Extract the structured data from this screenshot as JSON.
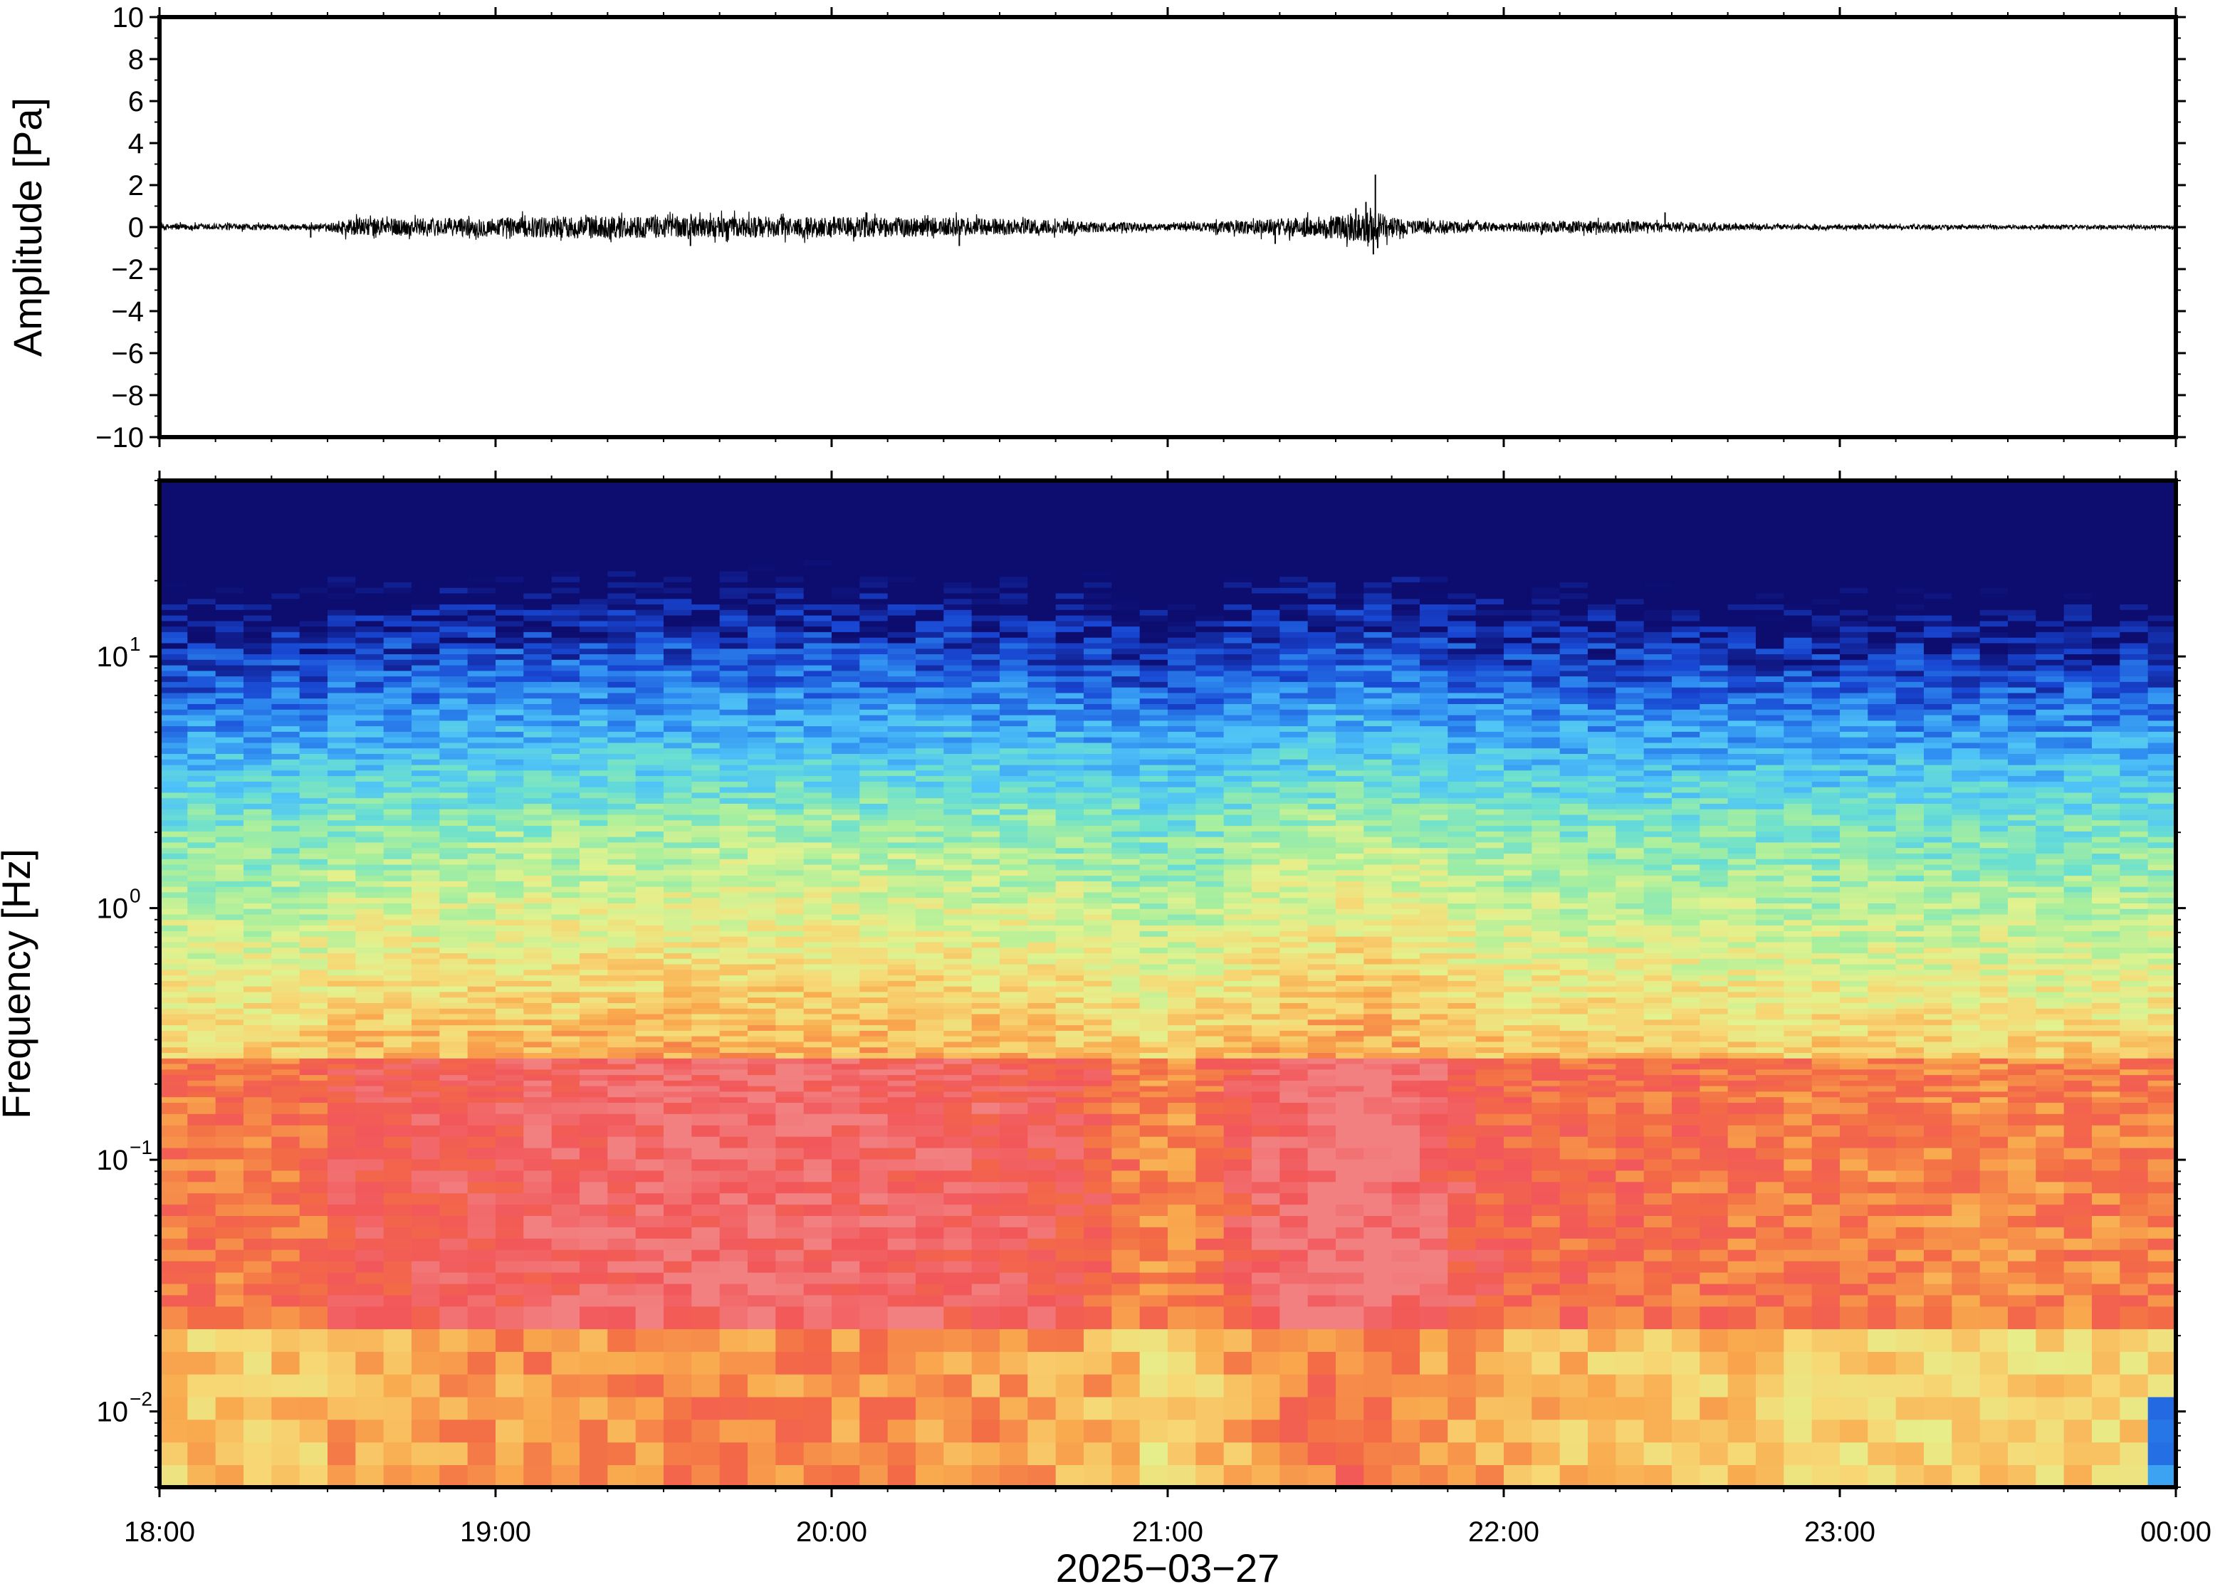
{
  "chart_data": [
    {
      "type": "line",
      "panel": "waveform",
      "ylabel": "Amplitude [Pa]",
      "ylim": [
        -10,
        10
      ],
      "yticks": [
        10,
        8,
        6,
        4,
        2,
        0,
        -2,
        -4,
        -6,
        -8,
        -10
      ],
      "ytick_labels": [
        "10",
        "8",
        "6",
        "4",
        "2",
        "0",
        "−2",
        "−4",
        "−6",
        "−8",
        "−10"
      ],
      "x_range_hours": [
        18,
        24
      ],
      "series": [
        {
          "color": "#000000",
          "envelope": [
            {
              "t": 18.0,
              "a": 0.15
            },
            {
              "t": 18.5,
              "a": 0.15
            },
            {
              "t": 18.55,
              "a": 0.4
            },
            {
              "t": 19.0,
              "a": 0.45
            },
            {
              "t": 19.3,
              "a": 0.55
            },
            {
              "t": 19.6,
              "a": 0.5
            },
            {
              "t": 20.0,
              "a": 0.5
            },
            {
              "t": 20.4,
              "a": 0.45
            },
            {
              "t": 20.7,
              "a": 0.3
            },
            {
              "t": 21.0,
              "a": 0.15
            },
            {
              "t": 21.2,
              "a": 0.3
            },
            {
              "t": 21.5,
              "a": 0.55
            },
            {
              "t": 21.6,
              "a": 0.8
            },
            {
              "t": 21.7,
              "a": 0.35
            },
            {
              "t": 22.0,
              "a": 0.2
            },
            {
              "t": 22.2,
              "a": 0.3
            },
            {
              "t": 22.5,
              "a": 0.25
            },
            {
              "t": 22.8,
              "a": 0.12
            },
            {
              "t": 23.5,
              "a": 0.1
            },
            {
              "t": 24.0,
              "a": 0.1
            }
          ],
          "peaks": [
            {
              "t": 21.618,
              "a": 2.5
            },
            {
              "t": 21.612,
              "a": -1.3
            },
            {
              "t": 21.59,
              "a": 1.2
            },
            {
              "t": 21.625,
              "a": -1.0
            },
            {
              "t": 21.56,
              "a": 0.9
            },
            {
              "t": 19.58,
              "a": -0.9
            },
            {
              "t": 20.38,
              "a": -0.9
            },
            {
              "t": 22.48,
              "a": 0.7
            },
            {
              "t": 18.45,
              "a": -0.5
            },
            {
              "t": 21.32,
              "a": -0.8
            }
          ]
        }
      ]
    },
    {
      "type": "heatmap",
      "panel": "spectrogram",
      "ylabel": "Frequency [Hz]",
      "yscale": "log",
      "ylim": [
        0.005,
        50
      ],
      "yticks": [
        {
          "value": 0.01,
          "base": "10",
          "exp": "−2"
        },
        {
          "value": 0.1,
          "base": "10",
          "exp": "−1"
        },
        {
          "value": 1,
          "base": "10",
          "exp": "0"
        },
        {
          "value": 10,
          "base": "10",
          "exp": "1"
        }
      ],
      "colormap": "jet",
      "colormap_stops": [
        "#0d0c6f",
        "#1846d2",
        "#2e8cf0",
        "#4fc3f7",
        "#6be0d0",
        "#a8ef9d",
        "#e2f28e",
        "#f7d774",
        "#f9a94e",
        "#f36c45",
        "#f2575a",
        "#f28080"
      ],
      "x_range_hours": [
        18,
        24
      ],
      "xlabel": "2025−03−27",
      "xticks": [
        "18:00",
        "19:00",
        "20:00",
        "21:00",
        "22:00",
        "23:00",
        "00:00"
      ]
    }
  ]
}
